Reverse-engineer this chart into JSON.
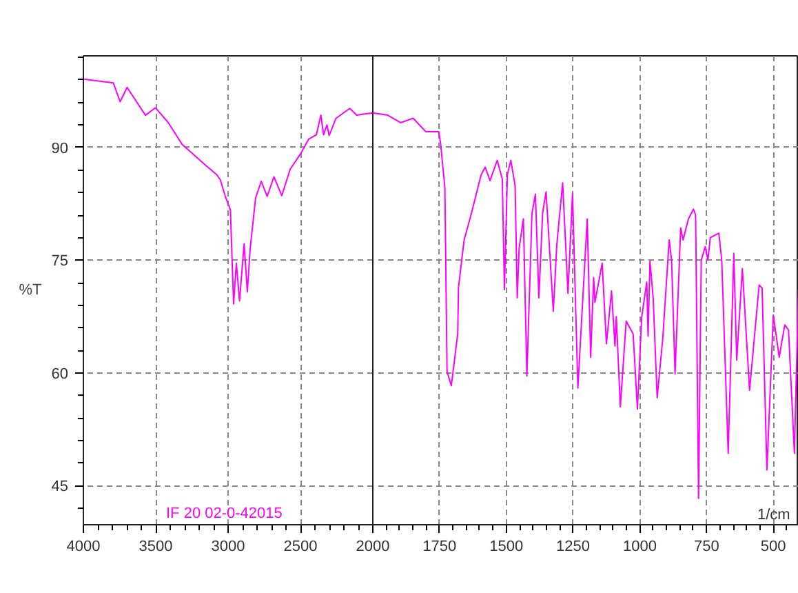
{
  "chart_data": [
    {
      "type": "line",
      "ylabel": "%T",
      "annotations": [
        "IF 20 02-0-42015"
      ],
      "xlim": [
        4000,
        2000
      ],
      "xticks": [
        4000,
        3500,
        3000,
        2500,
        2000
      ],
      "ylim": [
        39.8,
        102.2
      ],
      "yticks": [
        45,
        60,
        75,
        90
      ],
      "grid": true,
      "line_style": "solid",
      "series": [
        {
          "color": "#ff00ff",
          "x": [
            4000,
            3793,
            3746,
            3698,
            3571,
            3502,
            3413,
            3317,
            3159,
            3079,
            3054,
            3016,
            2984,
            2962,
            2943,
            2921,
            2889,
            2867,
            2848,
            2810,
            2771,
            2730,
            2683,
            2629,
            2571,
            2498,
            2444,
            2390,
            2359,
            2340,
            2317,
            2302,
            2254,
            2159,
            2111,
            2048,
            2000
          ],
          "values": [
            99.1,
            98.6,
            96.1,
            98.0,
            94.3,
            95.3,
            93.3,
            90.4,
            87.7,
            86.4,
            85.7,
            83.3,
            81.7,
            69.2,
            74.6,
            69.6,
            77.2,
            70.8,
            76.4,
            83.3,
            85.5,
            83.5,
            86.1,
            83.6,
            87.1,
            89.2,
            91.1,
            91.7,
            94.3,
            91.7,
            93.0,
            91.6,
            93.9,
            95.2,
            94.3,
            94.5,
            94.6
          ]
        }
      ]
    },
    {
      "type": "line",
      "xlabel": "1/cm",
      "xlim": [
        2000,
        405
      ],
      "xticks": [
        1750,
        1500,
        1250,
        1000,
        750,
        500
      ],
      "ylim": [
        39.8,
        102.2
      ],
      "yticks": [
        45,
        60,
        75,
        90
      ],
      "grid": true,
      "tick_labels": "x",
      "line_style": "solid",
      "series": [
        {
          "color": "#ff00ff",
          "x": [
            2000,
            1944,
            1896,
            1849,
            1801,
            1753,
            1746,
            1730,
            1722,
            1706,
            1682,
            1679,
            1658,
            1634,
            1594,
            1579,
            1561,
            1534,
            1515,
            1507,
            1496,
            1483,
            1467,
            1459,
            1452,
            1436,
            1423,
            1404,
            1391,
            1378,
            1364,
            1351,
            1324,
            1311,
            1289,
            1269,
            1252,
            1232,
            1197,
            1184,
            1173,
            1168,
            1141,
            1125,
            1106,
            1093,
            1088,
            1073,
            1051,
            1025,
            1009,
            993,
            974,
            969,
            962,
            950,
            935,
            914,
            890,
            881,
            868,
            847,
            838,
            818,
            799,
            791,
            780,
            770,
            755,
            745,
            736,
            704,
            693,
            669,
            648,
            637,
            616,
            589,
            553,
            542,
            524,
            500,
            478,
            457,
            443,
            421,
            406
          ],
          "values": [
            94.6,
            94.3,
            93.3,
            93.9,
            92.1,
            92.1,
            90.5,
            84.6,
            60.2,
            58.3,
            65.2,
            71.4,
            77.7,
            80.8,
            86.4,
            87.4,
            85.6,
            88.3,
            85.8,
            71.1,
            86.4,
            88.3,
            84.9,
            70.0,
            76.6,
            80.5,
            59.6,
            81.2,
            83.8,
            70.0,
            81.3,
            84.1,
            68.2,
            77,
            85.3,
            70.6,
            83.9,
            58.0,
            80.5,
            62.1,
            72.7,
            69.4,
            74.6,
            63.9,
            70.9,
            63.6,
            67.5,
            55.5,
            66.9,
            65.2,
            55.2,
            67.4,
            72.1,
            64.9,
            74.9,
            70,
            56.7,
            64.6,
            77.7,
            75,
            59.9,
            79.3,
            77.7,
            80.5,
            81.8,
            81,
            43.3,
            75,
            76.8,
            75,
            78,
            78.6,
            74.9,
            49.3,
            75.9,
            61.7,
            73.9,
            57.7,
            71.7,
            71.3,
            47.1,
            67.7,
            62.1,
            66.4,
            65.7,
            49.3,
            71.1
          ]
        }
      ]
    }
  ]
}
